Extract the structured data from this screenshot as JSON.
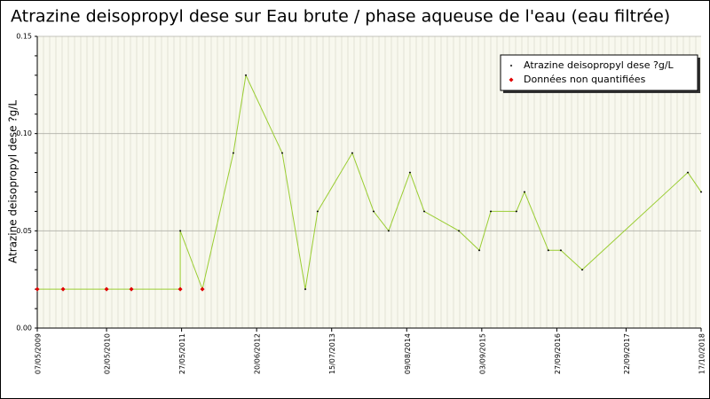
{
  "chart_data": {
    "type": "line",
    "title": "Atrazine deisopropyl dese sur Eau brute / phase aqueuse de l'eau (eau filtrée)",
    "y_label": "Atrazine deisopropyl dese ?g/L",
    "x": [
      "2009-05-07",
      "2009-09-18",
      "2010-05-02",
      "2010-09-08",
      "2011-05-20",
      "2011-05-20",
      "2011-09-12",
      "2012-02-20",
      "2012-04-25",
      "2012-10-31",
      "2013-02-28",
      "2013-05-03",
      "2013-10-30",
      "2014-02-18",
      "2014-05-07",
      "2014-08-26",
      "2014-11-08",
      "2015-05-07",
      "2015-08-21",
      "2015-10-20",
      "2016-03-01",
      "2016-04-12",
      "2016-08-14",
      "2016-10-18",
      "2017-02-06",
      "2018-08-09",
      "2018-10-17"
    ],
    "series": [
      {
        "name": "Atrazine deisopropyl dese ?g/L",
        "color": "#000000",
        "line_color": "#9acd32",
        "values": [
          null,
          null,
          null,
          null,
          null,
          0.05,
          null,
          0.09,
          0.13,
          0.09,
          0.02,
          0.06,
          0.09,
          0.06,
          0.05,
          0.08,
          0.06,
          0.05,
          0.04,
          0.06,
          0.06,
          0.07,
          0.04,
          0.04,
          0.03,
          0.08,
          0.07
        ]
      },
      {
        "name": "Données non quantifiées",
        "color": "#e00000",
        "values": [
          0.02,
          0.02,
          0.02,
          0.02,
          0.02,
          null,
          0.02,
          null,
          null,
          null,
          null,
          null,
          null,
          null,
          null,
          null,
          null,
          null,
          null,
          null,
          null,
          null,
          null,
          null,
          null,
          null,
          null
        ]
      }
    ],
    "xlim": [
      "2009-05-07",
      "2018-10-17"
    ],
    "xticks": [
      {
        "value": "2009-05-07",
        "label": "07/05/2009"
      },
      {
        "value": "2010-05-02",
        "label": "02/05/2010"
      },
      {
        "value": "2011-05-27",
        "label": "27/05/2011"
      },
      {
        "value": "2012-06-20",
        "label": "20/06/2012"
      },
      {
        "value": "2013-07-15",
        "label": "15/07/2013"
      },
      {
        "value": "2014-08-09",
        "label": "09/08/2014"
      },
      {
        "value": "2015-09-03",
        "label": "03/09/2015"
      },
      {
        "value": "2016-09-27",
        "label": "27/09/2016"
      },
      {
        "value": "2017-09-22",
        "label": "22/09/2017"
      },
      {
        "value": "2018-10-17",
        "label": "17/10/2018"
      }
    ],
    "ylim": [
      0,
      0.15
    ],
    "yticks": [
      {
        "value": 0,
        "label": "0.00"
      },
      {
        "value": 0.05,
        "label": "0.05"
      },
      {
        "value": 0.1,
        "label": "0.10"
      },
      {
        "value": 0.15,
        "label": "0.15"
      }
    ],
    "grid": true,
    "legend": "upper right"
  }
}
